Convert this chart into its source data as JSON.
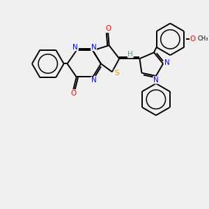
{
  "bg_color": "#f0f0f0",
  "bond_color": "#000000",
  "N_color": "#0000ff",
  "O_color": "#ff0000",
  "S_color": "#ccaa00",
  "H_color": "#4a9a9a",
  "fig_size": [
    3.0,
    3.0
  ],
  "dpi": 100,
  "xlim": [
    0,
    10
  ],
  "ylim": [
    0,
    10
  ]
}
